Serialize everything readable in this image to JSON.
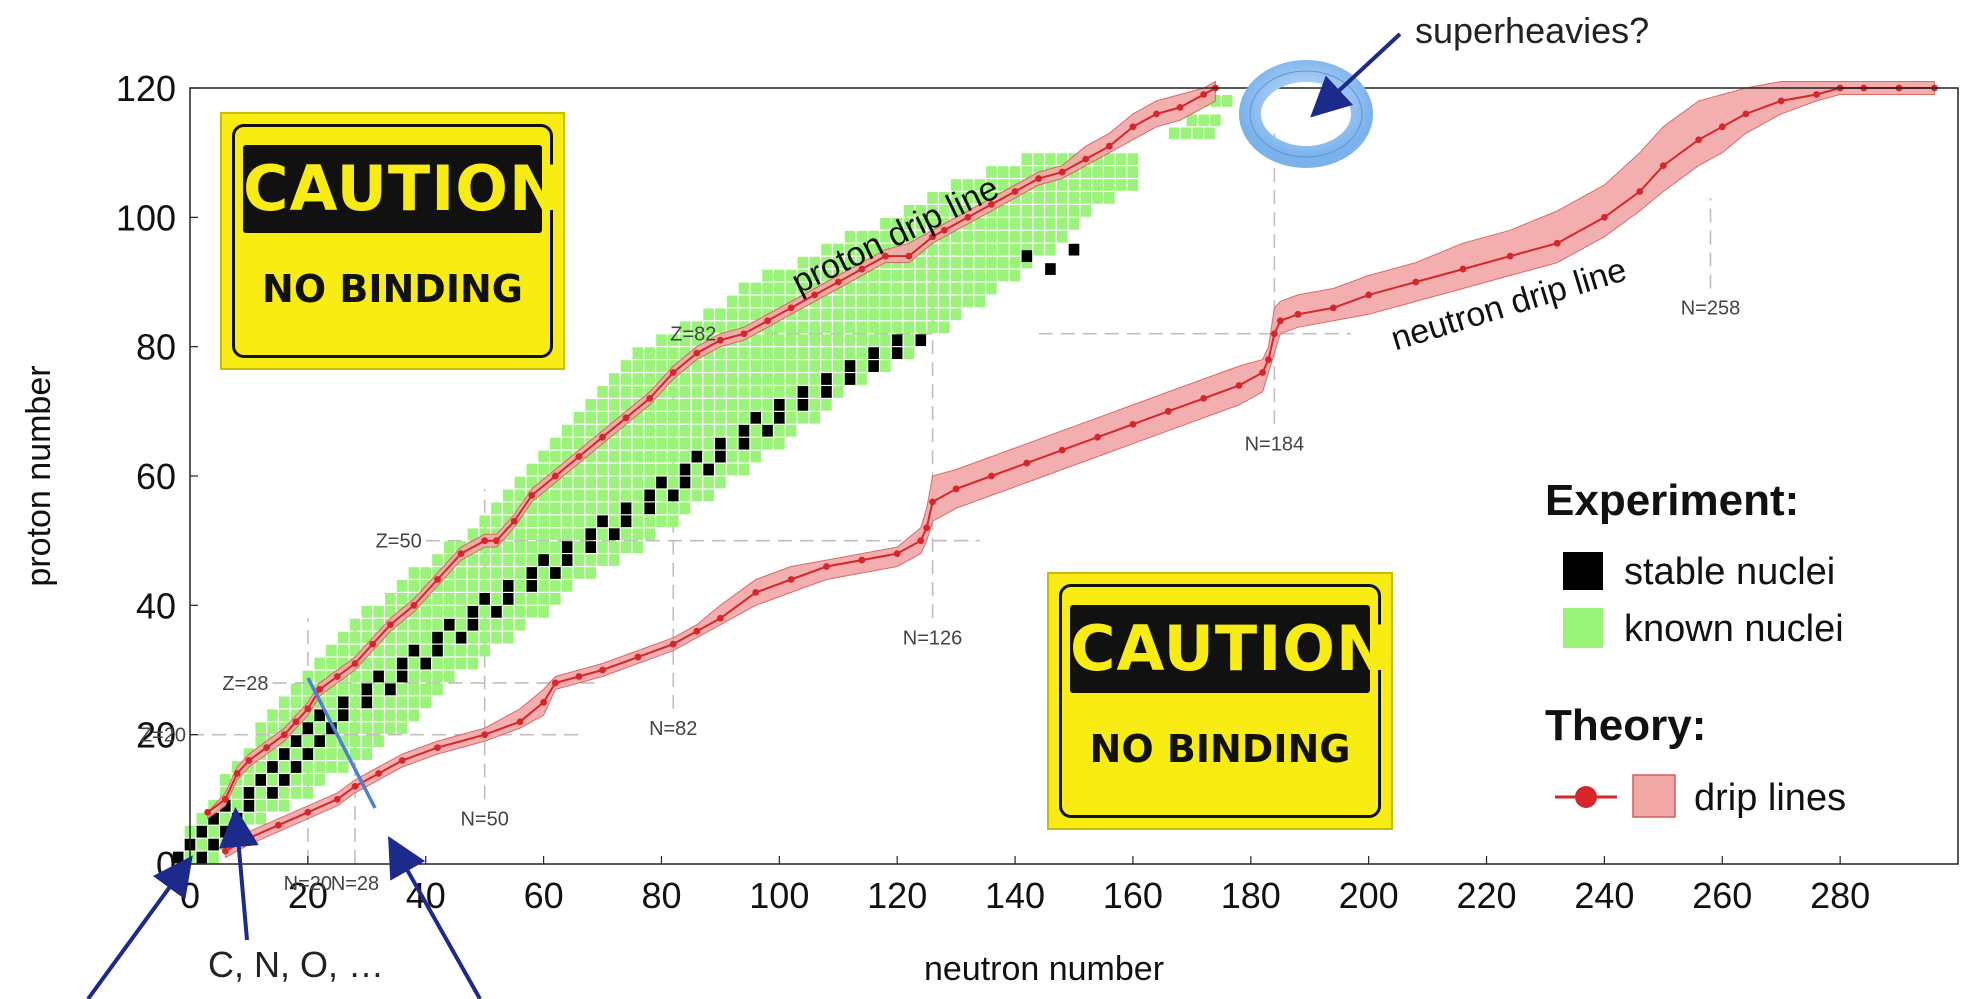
{
  "chart_data": {
    "type": "scatter",
    "xlabel": "neutron number",
    "ylabel": "proton number",
    "xlim": [
      0,
      300
    ],
    "ylim": [
      0,
      120
    ],
    "x_ticks": [
      "0",
      "20",
      "40",
      "60",
      "80",
      "100",
      "120",
      "140",
      "160",
      "180",
      "200",
      "220",
      "240",
      "260",
      "280"
    ],
    "y_ticks": [
      "0",
      "20",
      "40",
      "60",
      "80",
      "100",
      "120"
    ],
    "magic_numbers": {
      "proton": [
        {
          "label": "Z=20",
          "z": 20,
          "n_from": 0,
          "n_to": 66
        },
        {
          "label": "Z=28",
          "z": 28,
          "n_from": 14,
          "n_to": 70
        },
        {
          "label": "Z=50",
          "z": 50,
          "n_from": 40,
          "n_to": 134
        },
        {
          "label": "Z=82",
          "z": 82,
          "n_from": 90,
          "n_to": 127
        }
      ],
      "neutron": [
        {
          "label": "N=20",
          "n": 20,
          "z_from": 0,
          "z_to": 38
        },
        {
          "label": "N=28",
          "n": 28,
          "z_from": 0,
          "z_to": 38
        },
        {
          "label": "N=50",
          "n": 50,
          "z_from": 10,
          "z_to": 58
        },
        {
          "label": "N=82",
          "n": 82,
          "z_from": 24,
          "z_to": 77
        },
        {
          "label": "N=126",
          "n": 126,
          "z_from": 38,
          "z_to": 98
        },
        {
          "label": "N=184",
          "n": 184,
          "z_from": 68,
          "z_to": 113
        },
        {
          "label": "N=258",
          "n": 258,
          "z_from": 89,
          "z_to": 103
        }
      ],
      "extra_guides": [
        {
          "z": 82,
          "n_from": 144,
          "n_to": 197
        },
        {
          "z": 50,
          "n_from": 126,
          "n_to": 134
        }
      ]
    },
    "stable_nuclei_band": {
      "description_free": true,
      "z_from": 1,
      "z_to": 83,
      "n_center_by_z": [
        [
          1,
          0
        ],
        [
          10,
          10
        ],
        [
          20,
          20
        ],
        [
          30,
          36
        ],
        [
          40,
          51
        ],
        [
          50,
          68
        ],
        [
          60,
          84
        ],
        [
          70,
          100
        ],
        [
          82,
          124
        ]
      ],
      "extra_points": [
        [
          142,
          94
        ],
        [
          146,
          92
        ],
        [
          150,
          95
        ]
      ]
    },
    "known_nuclei_band": {
      "rows": [
        [
          1,
          0,
          5
        ],
        [
          5,
          0,
          9
        ],
        [
          10,
          5,
          19
        ],
        [
          15,
          8,
          27
        ],
        [
          20,
          12,
          35
        ],
        [
          25,
          16,
          40
        ],
        [
          30,
          20,
          47
        ],
        [
          35,
          26,
          55
        ],
        [
          40,
          32,
          62
        ],
        [
          45,
          38,
          68
        ],
        [
          50,
          46,
          78
        ],
        [
          55,
          51,
          85
        ],
        [
          60,
          56,
          93
        ],
        [
          65,
          61,
          101
        ],
        [
          70,
          66,
          108
        ],
        [
          75,
          72,
          114
        ],
        [
          80,
          78,
          124
        ],
        [
          85,
          88,
          131
        ],
        [
          90,
          96,
          139
        ],
        [
          95,
          108,
          147
        ],
        [
          100,
          120,
          152
        ],
        [
          105,
          130,
          160
        ],
        [
          110,
          145,
          162
        ]
      ],
      "superheavy_rows": [
        [
          113,
          167,
          173
        ],
        [
          115,
          170,
          175
        ],
        [
          118,
          172,
          176
        ]
      ]
    },
    "series": [
      {
        "name": "proton drip line",
        "x": [
          3,
          6,
          8,
          10,
          13,
          16,
          18,
          20,
          22,
          25,
          28,
          31,
          34,
          38,
          42,
          46,
          50,
          52,
          55,
          58,
          62,
          66,
          70,
          74,
          78,
          82,
          86,
          90,
          94,
          98,
          102,
          106,
          110,
          114,
          118,
          122,
          126,
          128,
          132,
          136,
          140,
          144,
          148,
          152,
          156,
          160,
          164,
          168,
          172,
          174
        ],
        "y": [
          8,
          10,
          14,
          16,
          18,
          20,
          22,
          24,
          27,
          29,
          31,
          34,
          37,
          40,
          44,
          48,
          50,
          50,
          53,
          57,
          60,
          63,
          66,
          69,
          72,
          76,
          79,
          81,
          82,
          84,
          86,
          88,
          90,
          92,
          94,
          94,
          97,
          98,
          100,
          102,
          104,
          106,
          107,
          109,
          111,
          114,
          116,
          117,
          119,
          120
        ],
        "upper": [
          8,
          11,
          15,
          17,
          19,
          21,
          23,
          25,
          28,
          30,
          32,
          35,
          38,
          41,
          45,
          49,
          51,
          51,
          54,
          58,
          61,
          64,
          67,
          70,
          73,
          77,
          80,
          82,
          83,
          85,
          87,
          89,
          91,
          93,
          95,
          96,
          98,
          99,
          101,
          103,
          105,
          107,
          108,
          111,
          113,
          116,
          118,
          119,
          120,
          121
        ],
        "lower": [
          7,
          9,
          13,
          15,
          17,
          19,
          21,
          23,
          26,
          28,
          30,
          33,
          36,
          39,
          43,
          47,
          49,
          49,
          52,
          56,
          59,
          62,
          65,
          68,
          71,
          75,
          78,
          80,
          81,
          83,
          85,
          87,
          89,
          91,
          93,
          93,
          96,
          97,
          99,
          101,
          103,
          105,
          106,
          108,
          110,
          112,
          114,
          115,
          117,
          118
        ]
      },
      {
        "name": "neutron drip line",
        "x": [
          6,
          10,
          15,
          20,
          25,
          28,
          32,
          36,
          42,
          50,
          56,
          60,
          62,
          66,
          70,
          76,
          82,
          86,
          90,
          96,
          102,
          108,
          114,
          120,
          124,
          125,
          126,
          130,
          136,
          142,
          148,
          154,
          160,
          166,
          172,
          178,
          182,
          183,
          184,
          185,
          188,
          194,
          200,
          208,
          216,
          224,
          232,
          240,
          246,
          250,
          256,
          260,
          264,
          270,
          276,
          280,
          284,
          290,
          296
        ],
        "y": [
          2,
          4,
          6,
          8,
          10,
          12,
          14,
          16,
          18,
          20,
          22,
          25,
          28,
          29,
          30,
          32,
          34,
          36,
          38,
          42,
          44,
          46,
          47,
          48,
          50,
          52,
          56,
          58,
          60,
          62,
          64,
          66,
          68,
          70,
          72,
          74,
          76,
          78,
          82,
          84,
          85,
          86,
          88,
          90,
          92,
          94,
          96,
          100,
          104,
          108,
          112,
          114,
          116,
          118,
          119,
          120,
          120,
          120,
          120
        ],
        "upper": [
          3,
          5,
          7,
          9,
          11,
          13,
          15,
          17,
          19,
          21,
          24,
          27,
          29,
          30,
          31,
          33,
          35,
          37,
          40,
          44,
          46,
          47,
          48,
          49,
          52,
          55,
          60,
          61,
          63,
          65,
          67,
          69,
          71,
          73,
          75,
          77,
          78,
          80,
          86,
          87,
          88,
          89,
          91,
          93,
          96,
          98,
          101,
          105,
          110,
          114,
          118,
          119,
          120,
          121,
          121,
          121,
          121,
          121,
          121
        ],
        "lower": [
          1,
          3,
          5,
          7,
          9,
          11,
          13,
          15,
          17,
          19,
          21,
          23,
          27,
          28,
          29,
          31,
          33,
          35,
          37,
          40,
          42,
          44,
          45,
          46,
          48,
          50,
          53,
          55,
          57,
          59,
          61,
          63,
          65,
          67,
          69,
          71,
          73,
          76,
          79,
          82,
          83,
          84,
          85,
          87,
          89,
          91,
          93,
          97,
          101,
          104,
          108,
          110,
          113,
          116,
          118,
          119,
          119,
          119,
          119
        ]
      }
    ],
    "series_labels": {
      "proton": "proton drip line",
      "neutron": "neutron drip line"
    },
    "legend": {
      "placement": "right",
      "experiment_title": "Experiment:",
      "stable": "stable nuclei",
      "known": "known nuclei",
      "theory_title": "Theory:",
      "drip": "drip lines"
    },
    "annotations": {
      "superheavies": "superheavies?",
      "cno": "C, N, O, …"
    },
    "caution_signs": [
      {
        "title": "CAUTION",
        "text": "NO BINDING"
      },
      {
        "title": "CAUTION",
        "text": "NO BINDING"
      }
    ],
    "colors": {
      "stable": "#000000",
      "known": "#9bf47a",
      "drip_line": "#d7262b",
      "drip_band": "#f2a7a7",
      "guide": "#bfbfbf",
      "arrow": "#1c2a8c",
      "ring": "#7ab2ec",
      "sign_yellow": "#f8ec12"
    }
  }
}
